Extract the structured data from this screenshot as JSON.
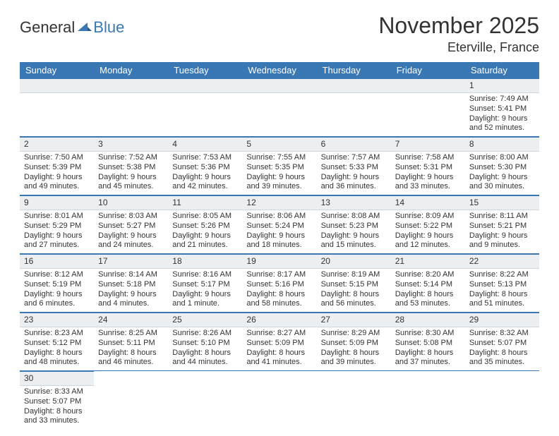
{
  "brand": {
    "general": "General",
    "blue": "Blue"
  },
  "title": "November 2025",
  "location": "Eterville, France",
  "colors": {
    "accent": "#3a78b5",
    "daynum_bg": "#eceff1",
    "text": "#333333",
    "background": "#ffffff"
  },
  "typography": {
    "title_fontsize": 32,
    "location_fontsize": 18,
    "header_fontsize": 13,
    "cell_fontsize": 11
  },
  "day_headers": [
    "Sunday",
    "Monday",
    "Tuesday",
    "Wednesday",
    "Thursday",
    "Friday",
    "Saturday"
  ],
  "weeks": [
    [
      null,
      null,
      null,
      null,
      null,
      null,
      {
        "n": "1",
        "sunrise": "Sunrise: 7:49 AM",
        "sunset": "Sunset: 5:41 PM",
        "dl1": "Daylight: 9 hours",
        "dl2": "and 52 minutes."
      }
    ],
    [
      {
        "n": "2",
        "sunrise": "Sunrise: 7:50 AM",
        "sunset": "Sunset: 5:39 PM",
        "dl1": "Daylight: 9 hours",
        "dl2": "and 49 minutes."
      },
      {
        "n": "3",
        "sunrise": "Sunrise: 7:52 AM",
        "sunset": "Sunset: 5:38 PM",
        "dl1": "Daylight: 9 hours",
        "dl2": "and 45 minutes."
      },
      {
        "n": "4",
        "sunrise": "Sunrise: 7:53 AM",
        "sunset": "Sunset: 5:36 PM",
        "dl1": "Daylight: 9 hours",
        "dl2": "and 42 minutes."
      },
      {
        "n": "5",
        "sunrise": "Sunrise: 7:55 AM",
        "sunset": "Sunset: 5:35 PM",
        "dl1": "Daylight: 9 hours",
        "dl2": "and 39 minutes."
      },
      {
        "n": "6",
        "sunrise": "Sunrise: 7:57 AM",
        "sunset": "Sunset: 5:33 PM",
        "dl1": "Daylight: 9 hours",
        "dl2": "and 36 minutes."
      },
      {
        "n": "7",
        "sunrise": "Sunrise: 7:58 AM",
        "sunset": "Sunset: 5:31 PM",
        "dl1": "Daylight: 9 hours",
        "dl2": "and 33 minutes."
      },
      {
        "n": "8",
        "sunrise": "Sunrise: 8:00 AM",
        "sunset": "Sunset: 5:30 PM",
        "dl1": "Daylight: 9 hours",
        "dl2": "and 30 minutes."
      }
    ],
    [
      {
        "n": "9",
        "sunrise": "Sunrise: 8:01 AM",
        "sunset": "Sunset: 5:29 PM",
        "dl1": "Daylight: 9 hours",
        "dl2": "and 27 minutes."
      },
      {
        "n": "10",
        "sunrise": "Sunrise: 8:03 AM",
        "sunset": "Sunset: 5:27 PM",
        "dl1": "Daylight: 9 hours",
        "dl2": "and 24 minutes."
      },
      {
        "n": "11",
        "sunrise": "Sunrise: 8:05 AM",
        "sunset": "Sunset: 5:26 PM",
        "dl1": "Daylight: 9 hours",
        "dl2": "and 21 minutes."
      },
      {
        "n": "12",
        "sunrise": "Sunrise: 8:06 AM",
        "sunset": "Sunset: 5:24 PM",
        "dl1": "Daylight: 9 hours",
        "dl2": "and 18 minutes."
      },
      {
        "n": "13",
        "sunrise": "Sunrise: 8:08 AM",
        "sunset": "Sunset: 5:23 PM",
        "dl1": "Daylight: 9 hours",
        "dl2": "and 15 minutes."
      },
      {
        "n": "14",
        "sunrise": "Sunrise: 8:09 AM",
        "sunset": "Sunset: 5:22 PM",
        "dl1": "Daylight: 9 hours",
        "dl2": "and 12 minutes."
      },
      {
        "n": "15",
        "sunrise": "Sunrise: 8:11 AM",
        "sunset": "Sunset: 5:21 PM",
        "dl1": "Daylight: 9 hours",
        "dl2": "and 9 minutes."
      }
    ],
    [
      {
        "n": "16",
        "sunrise": "Sunrise: 8:12 AM",
        "sunset": "Sunset: 5:19 PM",
        "dl1": "Daylight: 9 hours",
        "dl2": "and 6 minutes."
      },
      {
        "n": "17",
        "sunrise": "Sunrise: 8:14 AM",
        "sunset": "Sunset: 5:18 PM",
        "dl1": "Daylight: 9 hours",
        "dl2": "and 4 minutes."
      },
      {
        "n": "18",
        "sunrise": "Sunrise: 8:16 AM",
        "sunset": "Sunset: 5:17 PM",
        "dl1": "Daylight: 9 hours",
        "dl2": "and 1 minute."
      },
      {
        "n": "19",
        "sunrise": "Sunrise: 8:17 AM",
        "sunset": "Sunset: 5:16 PM",
        "dl1": "Daylight: 8 hours",
        "dl2": "and 58 minutes."
      },
      {
        "n": "20",
        "sunrise": "Sunrise: 8:19 AM",
        "sunset": "Sunset: 5:15 PM",
        "dl1": "Daylight: 8 hours",
        "dl2": "and 56 minutes."
      },
      {
        "n": "21",
        "sunrise": "Sunrise: 8:20 AM",
        "sunset": "Sunset: 5:14 PM",
        "dl1": "Daylight: 8 hours",
        "dl2": "and 53 minutes."
      },
      {
        "n": "22",
        "sunrise": "Sunrise: 8:22 AM",
        "sunset": "Sunset: 5:13 PM",
        "dl1": "Daylight: 8 hours",
        "dl2": "and 51 minutes."
      }
    ],
    [
      {
        "n": "23",
        "sunrise": "Sunrise: 8:23 AM",
        "sunset": "Sunset: 5:12 PM",
        "dl1": "Daylight: 8 hours",
        "dl2": "and 48 minutes."
      },
      {
        "n": "24",
        "sunrise": "Sunrise: 8:25 AM",
        "sunset": "Sunset: 5:11 PM",
        "dl1": "Daylight: 8 hours",
        "dl2": "and 46 minutes."
      },
      {
        "n": "25",
        "sunrise": "Sunrise: 8:26 AM",
        "sunset": "Sunset: 5:10 PM",
        "dl1": "Daylight: 8 hours",
        "dl2": "and 44 minutes."
      },
      {
        "n": "26",
        "sunrise": "Sunrise: 8:27 AM",
        "sunset": "Sunset: 5:09 PM",
        "dl1": "Daylight: 8 hours",
        "dl2": "and 41 minutes."
      },
      {
        "n": "27",
        "sunrise": "Sunrise: 8:29 AM",
        "sunset": "Sunset: 5:09 PM",
        "dl1": "Daylight: 8 hours",
        "dl2": "and 39 minutes."
      },
      {
        "n": "28",
        "sunrise": "Sunrise: 8:30 AM",
        "sunset": "Sunset: 5:08 PM",
        "dl1": "Daylight: 8 hours",
        "dl2": "and 37 minutes."
      },
      {
        "n": "29",
        "sunrise": "Sunrise: 8:32 AM",
        "sunset": "Sunset: 5:07 PM",
        "dl1": "Daylight: 8 hours",
        "dl2": "and 35 minutes."
      }
    ],
    [
      {
        "n": "30",
        "sunrise": "Sunrise: 8:33 AM",
        "sunset": "Sunset: 5:07 PM",
        "dl1": "Daylight: 8 hours",
        "dl2": "and 33 minutes."
      },
      null,
      null,
      null,
      null,
      null,
      null
    ]
  ]
}
